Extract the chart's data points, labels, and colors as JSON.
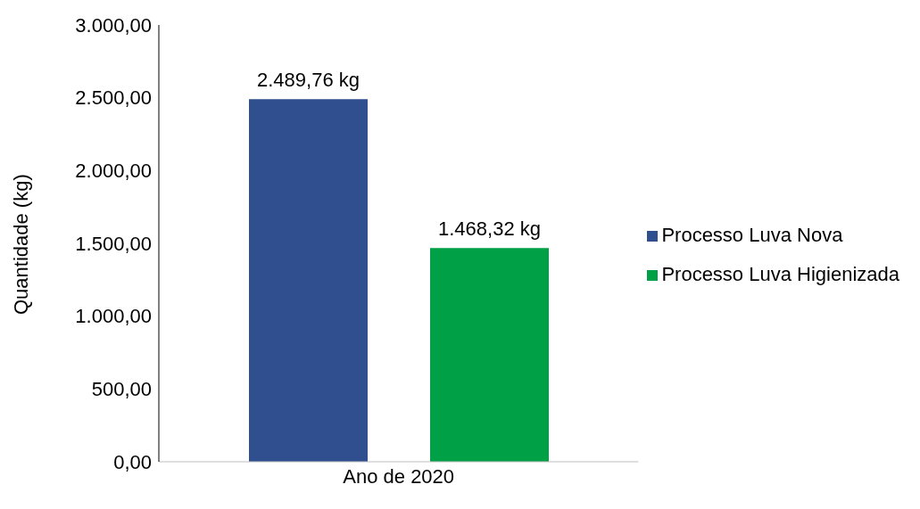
{
  "chart_data": {
    "type": "bar",
    "ylabel": "Quantidade (kg)",
    "categories": [
      "Ano de 2020"
    ],
    "series": [
      {
        "name": "Processo Luva Nova",
        "color": "#2f4f8f",
        "values": [
          2489.76
        ],
        "value_labels": [
          "2.489,76 kg"
        ]
      },
      {
        "name": "Processo Luva Higienizada",
        "color": "#00a046",
        "values": [
          1468.32
        ],
        "value_labels": [
          "1.468,32 kg"
        ]
      }
    ],
    "ylim": [
      0,
      3000
    ],
    "yticks": [
      {
        "value": 0,
        "label": "0,00"
      },
      {
        "value": 500,
        "label": "500,00"
      },
      {
        "value": 1000,
        "label": "1.000,00"
      },
      {
        "value": 1500,
        "label": "1.500,00"
      },
      {
        "value": 2000,
        "label": "2.000,00"
      },
      {
        "value": 2500,
        "label": "2.500,00"
      },
      {
        "value": 3000,
        "label": "3.000,00"
      }
    ],
    "grid": false,
    "legend": "right"
  }
}
